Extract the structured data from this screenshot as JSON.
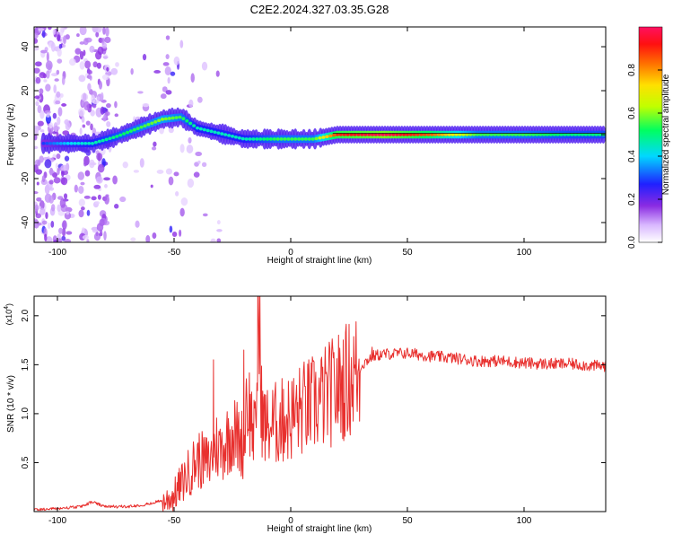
{
  "title": "C2E2.2024.327.03.35.G28",
  "chart_data": [
    {
      "type": "heatmap",
      "xlabel": "Height of straight line (km)",
      "ylabel": "Frequency (Hz)",
      "xlim": [
        -110,
        135
      ],
      "ylim": [
        -49,
        49
      ],
      "xticks": [
        -100,
        -50,
        0,
        50,
        100
      ],
      "yticks": [
        -40,
        -20,
        0,
        20,
        40
      ],
      "colorbar": {
        "label": "Normalized spectral amplitude",
        "range": [
          0.0,
          1.0
        ],
        "ticks": [
          0.0,
          0.2,
          0.4,
          0.6,
          0.8
        ]
      },
      "ridge": [
        {
          "x": -105,
          "y": -4,
          "amp": 0.3
        },
        {
          "x": -95,
          "y": -4,
          "amp": 0.4
        },
        {
          "x": -85,
          "y": -4,
          "amp": 0.45
        },
        {
          "x": -75,
          "y": -1,
          "amp": 0.5
        },
        {
          "x": -65,
          "y": 3,
          "amp": 0.55
        },
        {
          "x": -55,
          "y": 7,
          "amp": 0.6
        },
        {
          "x": -47,
          "y": 8,
          "amp": 0.55
        },
        {
          "x": -40,
          "y": 3,
          "amp": 0.45
        },
        {
          "x": -32,
          "y": 1,
          "amp": 0.45
        },
        {
          "x": -20,
          "y": -2,
          "amp": 0.45
        },
        {
          "x": -5,
          "y": -2,
          "amp": 0.55
        },
        {
          "x": 10,
          "y": -2,
          "amp": 0.55
        },
        {
          "x": 20,
          "y": 0,
          "amp": 0.9
        },
        {
          "x": 40,
          "y": 0,
          "amp": 0.98
        },
        {
          "x": 60,
          "y": 0,
          "amp": 0.85
        },
        {
          "x": 80,
          "y": 0,
          "amp": 0.55
        },
        {
          "x": 100,
          "y": 0,
          "amp": 0.55
        },
        {
          "x": 120,
          "y": 0,
          "amp": 0.5
        },
        {
          "x": 135,
          "y": 0,
          "amp": 0.5
        }
      ]
    },
    {
      "type": "line",
      "xlabel": "Height of straight line (km)",
      "ylabel": "SNR (10 * v/v)",
      "yscale_note": "(x10",
      "yscale_exp": "4",
      "xlim": [
        -110,
        135
      ],
      "ylim": [
        0,
        2.2
      ],
      "xticks": [
        -100,
        -50,
        0,
        50,
        100
      ],
      "yticks": [
        0.5,
        1.0,
        1.5,
        2.0
      ],
      "color": "#e8302e",
      "x": [
        -110,
        -100,
        -90,
        -85,
        -80,
        -70,
        -60,
        -55,
        -50,
        -45,
        -40,
        -35,
        -32,
        -30,
        -25,
        -20,
        -19,
        -15,
        -14,
        -12,
        -10,
        -5,
        0,
        5,
        10,
        15,
        20,
        25,
        28,
        30,
        35,
        40,
        50,
        60,
        70,
        80,
        90,
        100,
        110,
        120,
        130,
        135
      ],
      "y": [
        0.02,
        0.03,
        0.05,
        0.1,
        0.05,
        0.05,
        0.08,
        0.12,
        0.2,
        0.4,
        0.6,
        0.55,
        0.75,
        0.7,
        0.9,
        0.75,
        1.3,
        0.8,
        2.2,
        1.0,
        0.95,
        1.0,
        1.05,
        1.15,
        1.2,
        1.28,
        1.38,
        1.48,
        1.55,
        1.5,
        1.6,
        1.62,
        1.63,
        1.6,
        1.58,
        1.55,
        1.55,
        1.53,
        1.52,
        1.52,
        1.5,
        1.5
      ]
    }
  ]
}
